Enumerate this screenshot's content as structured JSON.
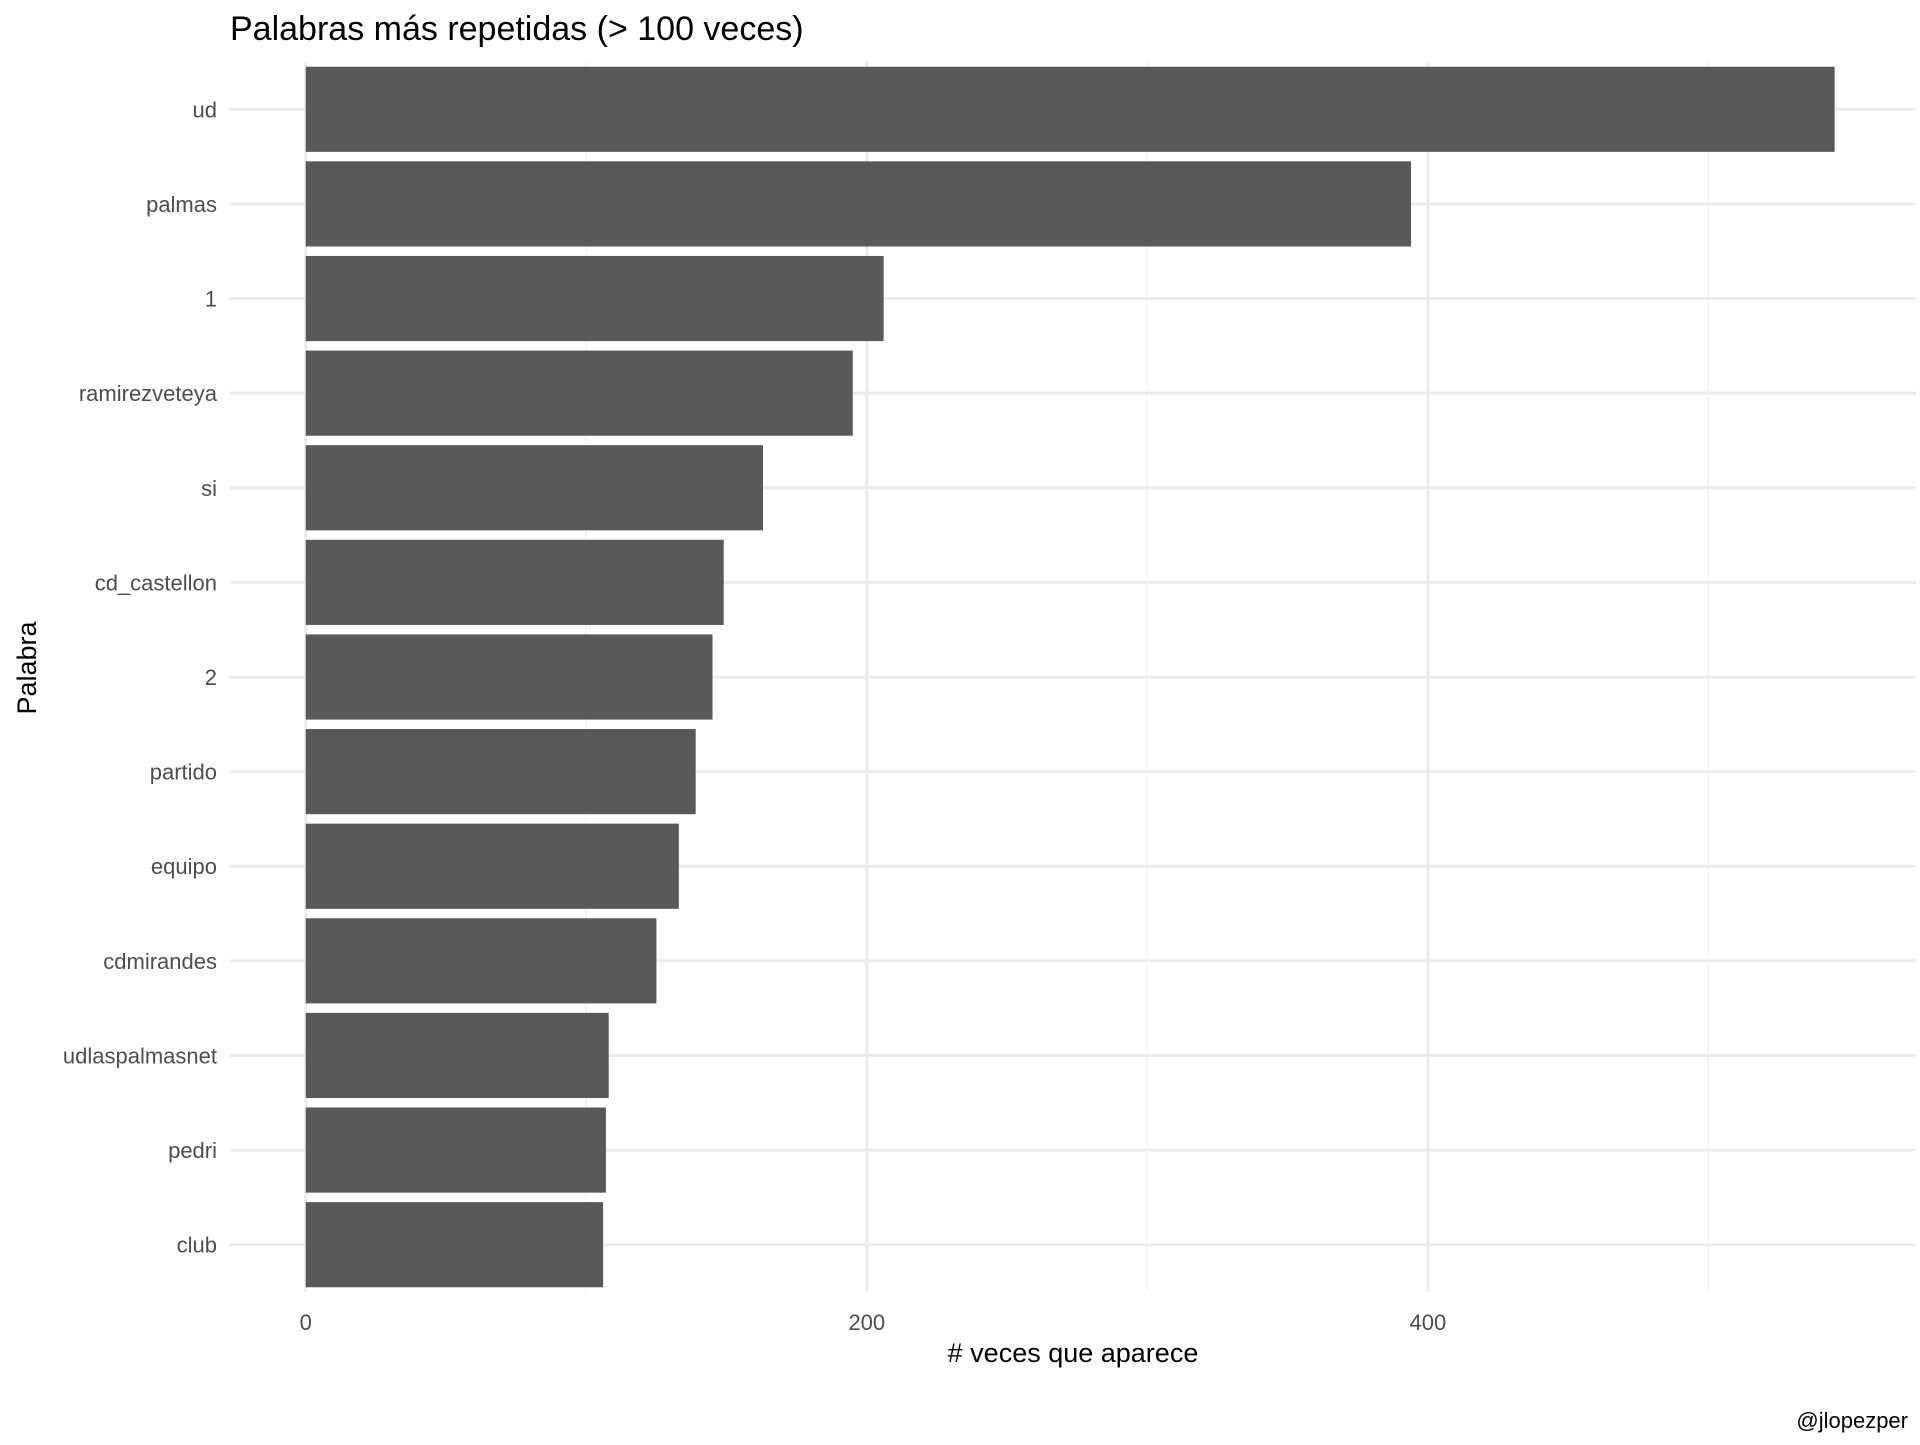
{
  "chart_data": {
    "type": "bar",
    "orientation": "horizontal",
    "title": "Palabras más repetidas (> 100 veces)",
    "xlabel": "# veces que aparece",
    "ylabel": "Palabra",
    "caption": "@jlopezper",
    "categories": [
      "ud",
      "palmas",
      "1",
      "ramirezveteya",
      "si",
      "cd_castellon",
      "2",
      "partido",
      "equipo",
      "cdmirandes",
      "udlaspalmasnet",
      "pedri",
      "club"
    ],
    "values": [
      545,
      394,
      206,
      195,
      163,
      149,
      145,
      139,
      133,
      125,
      108,
      107,
      106
    ],
    "xlim": [
      -27,
      574
    ],
    "x_ticks": [
      0,
      200,
      400
    ],
    "x_minor_ticks": [
      100,
      300,
      500
    ],
    "grid": true,
    "bar_color": "#595959"
  }
}
